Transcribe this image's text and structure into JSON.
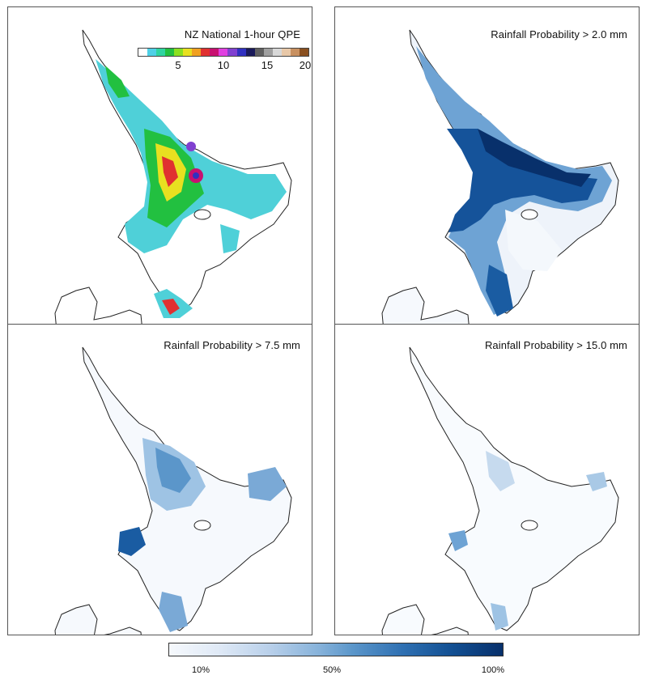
{
  "panels": {
    "qpe": {
      "title": "NZ National 1-hour QPE"
    },
    "p2": {
      "title": "Rainfall Probability > 2.0 mm"
    },
    "p75": {
      "title": "Rainfall Probability > 7.5 mm"
    },
    "p15": {
      "title": "Rainfall Probability > 15.0 mm"
    }
  },
  "qpe_legend": {
    "ticks": [
      "5",
      "10",
      "15",
      "20"
    ],
    "colors": [
      "#ffffff",
      "#4fd0e6",
      "#2fd4a0",
      "#22c040",
      "#8ce020",
      "#e8e020",
      "#f0a020",
      "#e03030",
      "#c81070",
      "#e040e0",
      "#8040d0",
      "#3030c0",
      "#1a1a5a",
      "#606060",
      "#a0a0a0",
      "#d8d8d8",
      "#e8c8a8",
      "#c89060",
      "#8a5020"
    ]
  },
  "prob_legend": {
    "ticks": [
      "10%",
      "50%",
      "100%"
    ]
  }
}
